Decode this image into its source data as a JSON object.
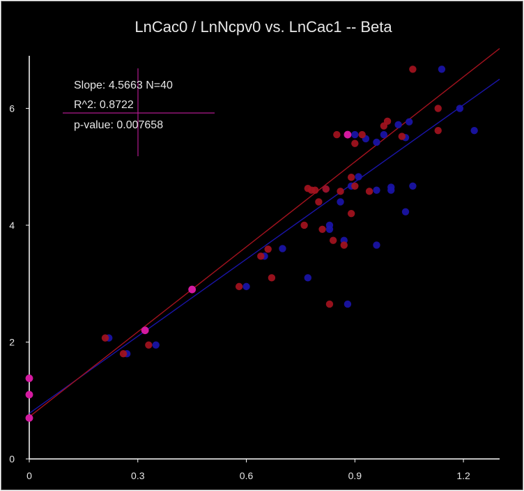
{
  "chart_data": {
    "type": "scatter",
    "title": "LnCac0 / LnNcpv0 vs. LnCac1 -- Beta",
    "xlabel": "",
    "ylabel": "",
    "xlim": [
      0,
      1.3
    ],
    "ylim": [
      0,
      6.9
    ],
    "x_ticks": [
      0,
      0.3,
      0.6,
      0.9,
      1.2
    ],
    "x_tick_labels": [
      "0",
      "0.3",
      "0.6",
      "0.9",
      "1.2"
    ],
    "y_ticks": [
      0,
      2,
      4,
      6
    ],
    "y_tick_labels": [
      "0",
      "2",
      "4",
      "6"
    ],
    "grid": false,
    "stats_box": {
      "slope_line": "Slope: 4.5663 N=40",
      "r2_line": "R^2: 0.8722",
      "pvalue_line": "p-value: 0.007658"
    },
    "series": [
      {
        "color": "#1a14a8",
        "fit": {
          "intercept": 0.78,
          "slope": 4.4
        },
        "x": [
          0,
          0,
          0,
          0.22,
          0.27,
          0.32,
          0.35,
          0.45,
          0.6,
          0.65,
          0.7,
          0.77,
          0.82,
          0.83,
          0.83,
          0.86,
          0.87,
          0.88,
          0.89,
          0.9,
          0.91,
          0.93,
          0.96,
          0.96,
          0.96,
          0.98,
          1.0,
          1.0,
          1.02,
          1.04,
          1.04,
          1.05,
          1.06,
          1.14,
          1.19,
          1.23
        ],
        "y": [
          0.7,
          1.1,
          1.38,
          2.07,
          1.8,
          2.2,
          1.95,
          2.9,
          2.95,
          3.47,
          3.6,
          3.1,
          4.62,
          4.0,
          3.93,
          4.4,
          3.74,
          2.65,
          4.67,
          5.55,
          4.83,
          5.48,
          5.42,
          4.6,
          3.66,
          5.55,
          4.6,
          4.65,
          5.72,
          5.5,
          4.23,
          5.77,
          4.67,
          6.67,
          6.0,
          5.62
        ]
      },
      {
        "color": "#a3121e",
        "fit": {
          "intercept": 0.72,
          "slope": 4.85
        },
        "x": [
          0,
          0,
          0,
          0.21,
          0.26,
          0.32,
          0.33,
          0.45,
          0.58,
          0.64,
          0.66,
          0.67,
          0.76,
          0.77,
          0.78,
          0.79,
          0.8,
          0.81,
          0.82,
          0.83,
          0.84,
          0.85,
          0.86,
          0.87,
          0.89,
          0.89,
          0.9,
          0.9,
          0.92,
          0.94,
          0.98,
          0.99,
          1.03,
          1.06,
          1.13,
          1.13
        ],
        "y": [
          0.7,
          1.1,
          1.38,
          2.07,
          1.8,
          2.2,
          1.95,
          2.9,
          2.95,
          3.47,
          3.59,
          3.1,
          4.0,
          4.63,
          4.6,
          4.6,
          4.4,
          3.93,
          4.62,
          2.65,
          3.74,
          5.55,
          4.58,
          3.66,
          4.2,
          4.82,
          5.4,
          4.67,
          5.55,
          4.58,
          5.7,
          5.78,
          5.52,
          6.67,
          6.0,
          5.62
        ]
      }
    ],
    "highlight_points": {
      "color": "#d41aa0",
      "x": [
        0,
        0,
        0,
        0.32,
        0.45,
        0.88
      ],
      "y": [
        0.7,
        1.1,
        1.38,
        2.2,
        2.9,
        5.55
      ]
    }
  }
}
